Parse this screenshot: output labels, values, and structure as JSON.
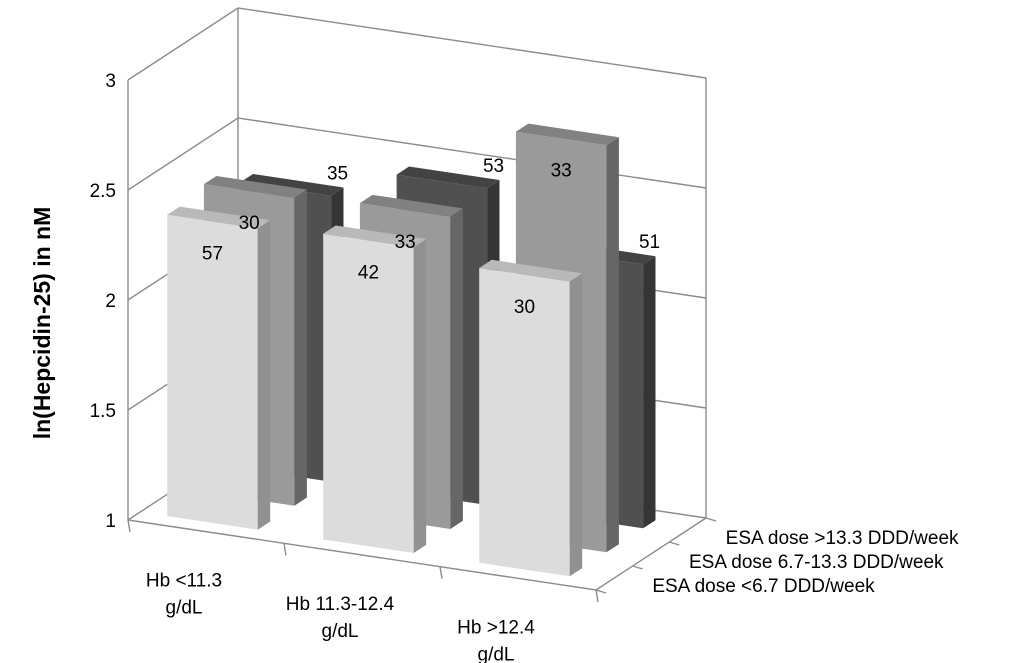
{
  "chart_data": {
    "type": "bar",
    "subtype": "3d-clustered-bar",
    "ylabel": "ln(Hepcidin-25) in nM",
    "ylim": [
      1,
      3
    ],
    "yticks": [
      "1",
      "1.5",
      "2",
      "2.5",
      "3"
    ],
    "categories": [
      "Hb <11.3 g/dL",
      "Hb 11.3-12.4 g/dL",
      "Hb >12.4 g/dL"
    ],
    "category_lines": [
      [
        "Hb <11.3",
        "g/dL"
      ],
      [
        "Hb 11.3-12.4",
        "g/dL"
      ],
      [
        "Hb >12.4",
        "g/dL"
      ]
    ],
    "grid": true,
    "series": [
      {
        "name": "ESA dose <6.7 DDD/week",
        "values": [
          2.37,
          2.39,
          2.34
        ],
        "labels": [
          "57",
          "42",
          "30"
        ],
        "color": "#dcdcdc"
      },
      {
        "name": "ESA dose 6.7-13.3 DDD/week",
        "values": [
          2.4,
          2.42,
          2.85
        ],
        "labels": [
          "30",
          "33",
          "33"
        ],
        "color": "#9a9a9a"
      },
      {
        "name": "ESA dose >13.3 DDD/week",
        "values": [
          2.3,
          2.44,
          2.2
        ],
        "labels": [
          "35",
          "53",
          "51"
        ],
        "color": "#505050"
      }
    ]
  }
}
